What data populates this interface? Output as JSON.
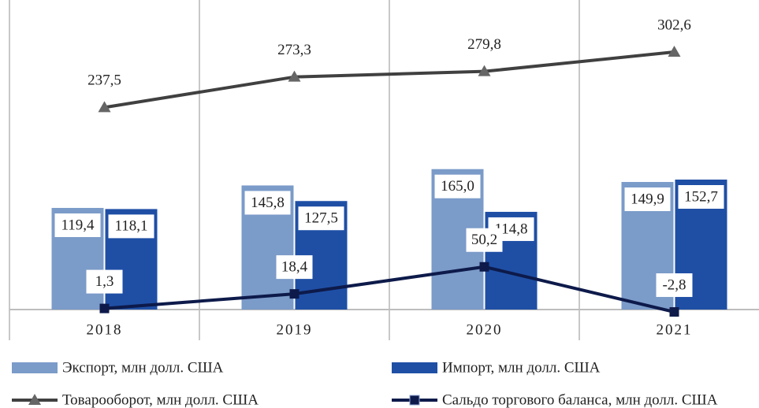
{
  "chart_data": {
    "type": "bar",
    "categories": [
      "2018",
      "2019",
      "2020",
      "2021"
    ],
    "ylim": [
      0,
      360
    ],
    "series": [
      {
        "name": "Экспорт, млн долл. США",
        "type": "bar",
        "color": "#7b9bc9",
        "values": [
          119.4,
          145.8,
          165.0,
          149.9
        ],
        "value_labels": [
          "119,4",
          "145,8",
          "165,0",
          "149,9"
        ]
      },
      {
        "name": "Импорт, млн долл. США",
        "type": "bar",
        "color": "#1f4fa5",
        "values": [
          118.1,
          127.5,
          114.8,
          152.7
        ],
        "value_labels": [
          "118,1",
          "127,5",
          "114,8",
          "152,7"
        ]
      },
      {
        "name": "Товарооборот, млн долл. США",
        "type": "line",
        "marker": "triangle",
        "color": "#404040",
        "values": [
          237.5,
          273.3,
          279.8,
          302.6
        ],
        "value_labels": [
          "237,5",
          "273,3",
          "279,8",
          "302,6"
        ]
      },
      {
        "name": "Сальдо торгового баланса, млн долл. США",
        "type": "line",
        "marker": "square",
        "color": "#0d1a4a",
        "values": [
          1.3,
          18.4,
          50.2,
          -2.8
        ],
        "value_labels": [
          "1,3",
          "18,4",
          "50,2",
          "-2,8"
        ]
      }
    ]
  }
}
